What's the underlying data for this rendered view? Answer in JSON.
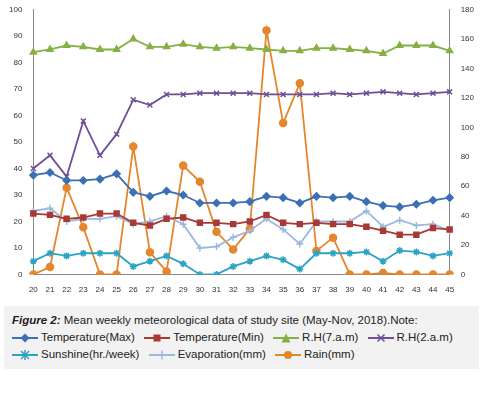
{
  "chart_data": {
    "type": "line",
    "title": "Figure 2: Mean weekly meteorological data of study site (May-Nov, 2018).Note:",
    "categories": [
      "20",
      "21",
      "22",
      "23",
      "24",
      "25",
      "26",
      "27",
      "28",
      "29",
      "30",
      "31",
      "32",
      "33",
      "34",
      "35",
      "36",
      "37",
      "38",
      "39",
      "40",
      "41",
      "42",
      "43",
      "44",
      "45"
    ],
    "ylim": [
      0,
      100
    ],
    "yticks": [
      0,
      10,
      20,
      30,
      40,
      50,
      60,
      70,
      80,
      90,
      100
    ],
    "y2lim": [
      0,
      180
    ],
    "y2ticks": [
      0,
      20,
      40,
      60,
      80,
      100,
      120,
      140,
      160,
      180
    ],
    "grid": false,
    "series": [
      {
        "name": "Temperature(Max)",
        "color": "#3c6fb4",
        "marker": "diamond",
        "values": [
          37.5,
          38.5,
          35.5,
          35.5,
          36,
          38,
          31,
          29.5,
          31.5,
          30,
          27,
          27,
          27,
          27.5,
          29.5,
          29,
          27,
          29.5,
          29,
          29.5,
          27.5,
          26,
          25.5,
          26.5,
          28,
          29
        ]
      },
      {
        "name": "Temperature(Min)",
        "color": "#a83a36",
        "marker": "square",
        "values": [
          23,
          22.5,
          21,
          21.5,
          23,
          23,
          19.5,
          18.5,
          21,
          21.5,
          19.5,
          19.5,
          19,
          20,
          22.5,
          19.5,
          19,
          19.5,
          19,
          19,
          18,
          16.5,
          15,
          15,
          17.5,
          17
        ]
      },
      {
        "name": "R.H(7.a.m)",
        "color": "#86b043",
        "marker": "triangle",
        "values": [
          84,
          85,
          86.5,
          86,
          85,
          85,
          89,
          86,
          86,
          87,
          86,
          85.5,
          86,
          85.5,
          85,
          84.5,
          84.5,
          85.5,
          85.5,
          85,
          84.5,
          83.5,
          86.5,
          86.5,
          86.5,
          84.5
        ]
      },
      {
        "name": "R.H(2.a.m)",
        "color": "#6f4f96",
        "marker": "x",
        "values": [
          40,
          45,
          37,
          58,
          45,
          53,
          66,
          64,
          68,
          68,
          68.5,
          68.5,
          68.5,
          68.5,
          68,
          68,
          68,
          68,
          68.5,
          68,
          68.5,
          69,
          68.5,
          68,
          68.5,
          69
        ]
      },
      {
        "name": "Sunshine(hr./week)",
        "color": "#2ba3c4",
        "marker": "star",
        "values": [
          5,
          8,
          7,
          8,
          8,
          8,
          3,
          5,
          7,
          4,
          0,
          0,
          3,
          5,
          7,
          5.5,
          2,
          8,
          8,
          8,
          8.5,
          5,
          9,
          8.5,
          7,
          8
        ]
      },
      {
        "name": "Evaporation(mm)",
        "color": "#9bb8e0",
        "marker": "plus",
        "values": [
          24,
          25,
          20,
          21,
          21,
          22,
          19,
          20,
          22,
          19,
          10,
          10.5,
          14,
          16.5,
          21,
          17,
          11.5,
          20,
          20,
          20,
          24,
          18,
          20.5,
          18.5,
          19,
          16.5
        ]
      },
      {
        "name": "Rain(mm)",
        "color": "#e6862c",
        "marker": "circle",
        "axis": "y2",
        "values": [
          0,
          5,
          59,
          32,
          0,
          0,
          87,
          15,
          2,
          74,
          63,
          29,
          17,
          31,
          166,
          103,
          130,
          16,
          25,
          0,
          0,
          1,
          0,
          0,
          0,
          0
        ]
      }
    ]
  }
}
